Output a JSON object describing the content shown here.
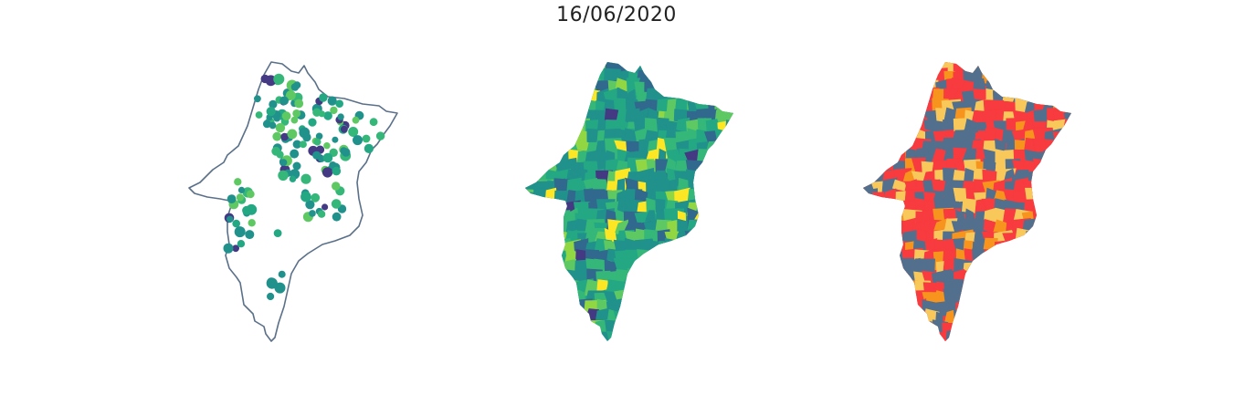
{
  "title": "16/06/2020",
  "colors": {
    "outline": "#5a7089",
    "viridis_dark": "#443983",
    "viridis_blue": "#31688e",
    "viridis_teal": "#21918c",
    "viridis_mid": "#24a884",
    "viridis_green": "#35b779",
    "viridis_lime": "#5ec962",
    "viridis_light": "#90d743",
    "viridis_yellow": "#fde725",
    "cat_red": "#f73b3f",
    "cat_orange": "#f7941d",
    "cat_yellow": "#f9c85b",
    "cat_slate": "#52708d"
  },
  "panels": [
    {
      "id": "panel-points",
      "type": "proportional-points"
    },
    {
      "id": "panel-choropleth-viridis",
      "type": "choropleth"
    },
    {
      "id": "panel-choropleth-categories",
      "type": "choropleth"
    }
  ]
}
